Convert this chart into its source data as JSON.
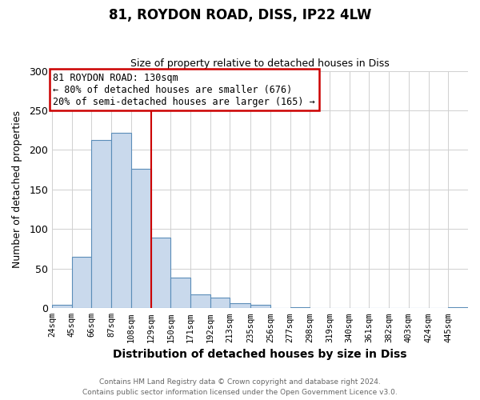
{
  "title": "81, ROYDON ROAD, DISS, IP22 4LW",
  "subtitle": "Size of property relative to detached houses in Diss",
  "xlabel": "Distribution of detached houses by size in Diss",
  "ylabel": "Number of detached properties",
  "footer_line1": "Contains HM Land Registry data © Crown copyright and database right 2024.",
  "footer_line2": "Contains public sector information licensed under the Open Government Licence v3.0.",
  "bin_labels": [
    "24sqm",
    "45sqm",
    "66sqm",
    "87sqm",
    "108sqm",
    "129sqm",
    "150sqm",
    "171sqm",
    "192sqm",
    "213sqm",
    "235sqm",
    "256sqm",
    "277sqm",
    "298sqm",
    "319sqm",
    "340sqm",
    "361sqm",
    "382sqm",
    "403sqm",
    "424sqm",
    "445sqm"
  ],
  "bar_values": [
    4,
    65,
    213,
    222,
    176,
    89,
    39,
    18,
    13,
    6,
    4,
    0,
    1,
    0,
    0,
    0,
    0,
    0,
    0,
    0,
    1
  ],
  "bin_edges": [
    24,
    45,
    66,
    87,
    108,
    129,
    150,
    171,
    192,
    213,
    235,
    256,
    277,
    298,
    319,
    340,
    361,
    382,
    403,
    424,
    445,
    466
  ],
  "vline_x": 129,
  "annotation_title": "81 ROYDON ROAD: 130sqm",
  "annotation_line2": "← 80% of detached houses are smaller (676)",
  "annotation_line3": "20% of semi-detached houses are larger (165) →",
  "bar_color": "#c9d9ec",
  "bar_edge_color": "#5b8db8",
  "vline_color": "#cc0000",
  "annotation_box_edge": "#cc0000",
  "ylim": [
    0,
    300
  ],
  "yticks": [
    0,
    50,
    100,
    150,
    200,
    250,
    300
  ],
  "background_color": "#ffffff",
  "grid_color": "#d0d0d0"
}
